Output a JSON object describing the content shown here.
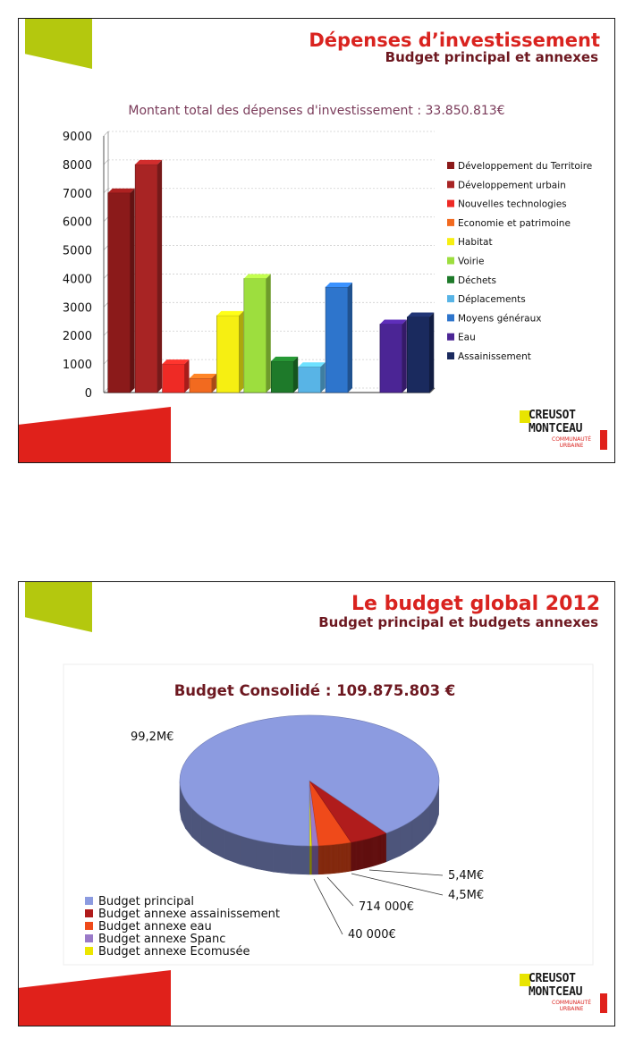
{
  "slides": [
    {
      "title": "Dépenses d’investissement",
      "subtitle": "Budget principal et annexes",
      "logo": {
        "line1": "CREUSOT",
        "line2": "MONTCEAU",
        "line3": "COMMUNAUTÉ URBAINE"
      }
    },
    {
      "title": "Le budget global 2012",
      "subtitle": "Budget principal et budgets annexes",
      "logo": {
        "line1": "CREUSOT",
        "line2": "MONTCEAU",
        "line3": "COMMUNAUTÉ URBAINE"
      }
    }
  ],
  "colors": {
    "title_red": "#d9231f",
    "subtitle_maroon": "#6d1820",
    "accent_green": "#b4c80e",
    "accent_red": "#e0211b"
  },
  "chart_data": [
    {
      "type": "bar",
      "title": "Montant total des dépenses d'investissement : 33.850.813€",
      "categories": [
        "Développement du Territoire",
        "Développement urbain",
        "Nouvelles technologies",
        "Economie et patrimoine",
        "Habitat",
        "Voirie",
        "Déchets",
        "Déplacements",
        "Moyens généraux",
        "",
        "Eau",
        "Assainissement"
      ],
      "values": [
        7000,
        8000,
        1000,
        500,
        2700,
        4000,
        1100,
        900,
        3700,
        null,
        2400,
        2650
      ],
      "series_colors": [
        "#8b1a1a",
        "#a82424",
        "#ee2a25",
        "#f26a1f",
        "#f6ef12",
        "#9dde3e",
        "#1e7a2a",
        "#58b4e6",
        "#2e75cc",
        "#ffffff",
        "#4b2595",
        "#1a2a5e"
      ],
      "yticks": [
        "9000",
        "8000",
        "7000",
        "6000",
        "5000",
        "4000",
        "3000",
        "2000",
        "1000",
        "0"
      ],
      "ylim": [
        0,
        9000
      ],
      "legend": [
        "Développement du Territoire",
        "Développement urbain",
        "Nouvelles technologies",
        "Economie et patrimoine",
        "Habitat",
        "Voirie",
        "Déchets",
        "Déplacements",
        "Moyens généraux",
        "Eau",
        "Assainissement"
      ],
      "legend_colors": [
        "#8b1a1a",
        "#a82424",
        "#ee2a25",
        "#f26a1f",
        "#f6ef12",
        "#9dde3e",
        "#1e7a2a",
        "#58b4e6",
        "#2e75cc",
        "#4b2595",
        "#1a2a5e"
      ],
      "legend_placement": "right",
      "grid": true
    },
    {
      "type": "pie",
      "title": "Budget Consolidé : 109.875.803 €",
      "labels": [
        "Budget principal",
        "Budget annexe assainissement",
        "Budget annexe eau",
        "Budget annexe Spanc",
        "Budget annexe Ecomusée"
      ],
      "values": [
        99200000,
        5400000,
        4500000,
        714000,
        40000
      ],
      "colors": [
        "#8c9be0",
        "#b01c1c",
        "#ef4a1a",
        "#9a7ac8",
        "#ece600"
      ],
      "slice_labels": [
        "99,2M€",
        "5,4M€",
        "4,5M€",
        "714 000€",
        "40 000€"
      ],
      "legend_placement": "bottom-left"
    }
  ]
}
